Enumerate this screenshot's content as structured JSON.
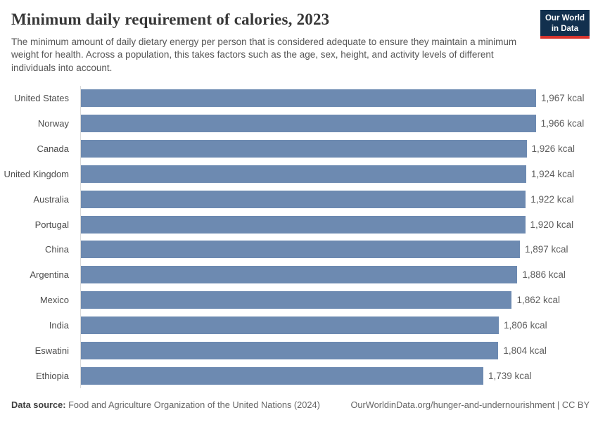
{
  "header": {
    "title": "Minimum daily requirement of calories, 2023",
    "subtitle": "The minimum amount of daily dietary energy per person that is considered adequate to ensure they maintain a minimum weight for health. Across a population, this takes factors such as the age, sex, height, and activity levels of different individuals into account.",
    "logo": {
      "line1": "Our World",
      "line2": "in Data"
    }
  },
  "chart_data": {
    "type": "bar",
    "orientation": "horizontal",
    "title": "Minimum daily requirement of calories, 2023",
    "unit": "kcal",
    "categories": [
      "United States",
      "Norway",
      "Canada",
      "United Kingdom",
      "Australia",
      "Portugal",
      "China",
      "Argentina",
      "Mexico",
      "India",
      "Eswatini",
      "Ethiopia"
    ],
    "values": [
      1967,
      1966,
      1926,
      1924,
      1922,
      1920,
      1897,
      1886,
      1862,
      1806,
      1804,
      1739
    ],
    "value_labels": [
      "1,967 kcal",
      "1,966 kcal",
      "1,926 kcal",
      "1,924 kcal",
      "1,922 kcal",
      "1,920 kcal",
      "1,897 kcal",
      "1,886 kcal",
      "1,862 kcal",
      "1,806 kcal",
      "1,804 kcal",
      "1,739 kcal"
    ],
    "xlim": [
      0,
      1967
    ],
    "grid": false,
    "legend": "none",
    "bar_color": "#6d8ab1"
  },
  "footer": {
    "source_label": "Data source:",
    "source_text": "Food and Agriculture Organization of the United Nations (2024)",
    "link_text": "OurWorldinData.org/hunger-and-undernourishment | CC BY"
  },
  "colors": {
    "bar": "#6d8ab1",
    "axis_line": "#d9d9d9",
    "title_text": "#373737",
    "subtitle_text": "#565656",
    "label_text": "#4c4c4c",
    "value_text": "#5d5d5d",
    "logo_bg": "#12304e",
    "logo_accent": "#d8352e"
  }
}
